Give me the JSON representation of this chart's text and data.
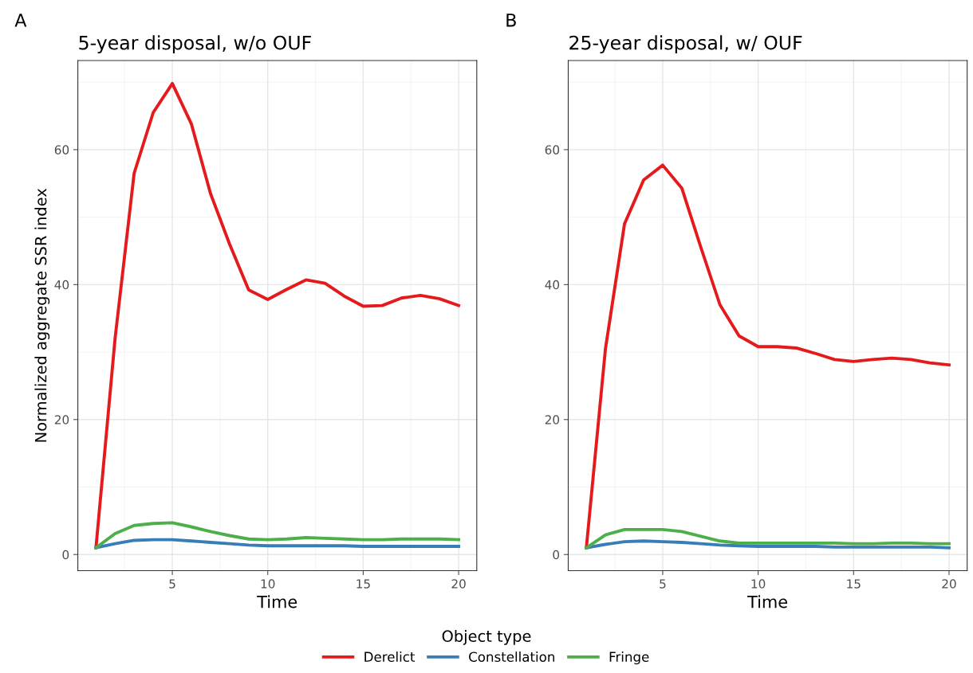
{
  "chart_data": [
    {
      "type": "line",
      "title": "5-year disposal, w/o OUF",
      "xlabel": "Time",
      "ylabel": "Normalized aggregate SSR index",
      "annotations": [
        "A"
      ],
      "x": [
        1,
        2,
        3,
        4,
        5,
        6,
        7,
        8,
        9,
        10,
        11,
        12,
        13,
        14,
        15,
        16,
        17,
        18,
        19,
        20
      ],
      "series": [
        {
          "name": "Derelict",
          "color": "#e41a1c",
          "values": [
            1,
            32,
            56.5,
            65.5,
            69.8,
            63.8,
            53.5,
            46,
            39.2,
            37.8,
            39.3,
            40.7,
            40.2,
            38.3,
            36.8,
            36.9,
            38,
            38.4,
            37.9,
            36.9
          ]
        },
        {
          "name": "Constellation",
          "color": "#377eb8",
          "values": [
            1,
            1.6,
            2.1,
            2.2,
            2.2,
            2.0,
            1.8,
            1.6,
            1.4,
            1.3,
            1.3,
            1.3,
            1.3,
            1.3,
            1.2,
            1.2,
            1.2,
            1.2,
            1.2,
            1.2
          ]
        },
        {
          "name": "Fringe",
          "color": "#4daf4a",
          "values": [
            1,
            3.1,
            4.3,
            4.6,
            4.7,
            4.1,
            3.4,
            2.8,
            2.3,
            2.2,
            2.3,
            2.5,
            2.4,
            2.3,
            2.2,
            2.2,
            2.3,
            2.3,
            2.3,
            2.2
          ]
        }
      ],
      "xlim": [
        0.05,
        20.95
      ],
      "ylim": [
        -2.4,
        73.2
      ],
      "xticks": [
        5,
        10,
        15,
        20
      ],
      "yticks": [
        0,
        20,
        40,
        60
      ],
      "grid": true,
      "legend": "bottom",
      "legend_title": "Object type",
      "line_style": "solid",
      "marker": "none"
    },
    {
      "type": "line",
      "title": "25-year disposal, w/ OUF",
      "xlabel": "Time",
      "annotations": [
        "B"
      ],
      "x": [
        1,
        2,
        3,
        4,
        5,
        6,
        7,
        8,
        9,
        10,
        11,
        12,
        13,
        14,
        15,
        16,
        17,
        18,
        19,
        20
      ],
      "series": [
        {
          "color": "#e41a1c",
          "values": [
            1,
            30.5,
            49,
            55.5,
            57.7,
            54.3,
            45.5,
            37,
            32.4,
            30.8,
            30.8,
            30.6,
            29.8,
            28.9,
            28.6,
            28.9,
            29.1,
            28.9,
            28.4,
            28.1
          ]
        },
        {
          "color": "#377eb8",
          "values": [
            1,
            1.5,
            1.9,
            2.0,
            1.9,
            1.8,
            1.6,
            1.4,
            1.3,
            1.2,
            1.2,
            1.2,
            1.2,
            1.1,
            1.1,
            1.1,
            1.1,
            1.1,
            1.1,
            1.0
          ]
        },
        {
          "color": "#4daf4a",
          "values": [
            1,
            2.9,
            3.7,
            3.7,
            3.7,
            3.4,
            2.7,
            2.0,
            1.7,
            1.7,
            1.7,
            1.7,
            1.7,
            1.7,
            1.6,
            1.6,
            1.7,
            1.7,
            1.6,
            1.6
          ]
        }
      ],
      "xlim": [
        0.05,
        20.95
      ],
      "ylim": [
        -2.4,
        73.2
      ],
      "xticks": [
        5,
        10,
        15,
        20
      ],
      "yticks": [
        0,
        20,
        40,
        60
      ],
      "grid": true,
      "line_style": "solid",
      "marker": "none"
    }
  ]
}
